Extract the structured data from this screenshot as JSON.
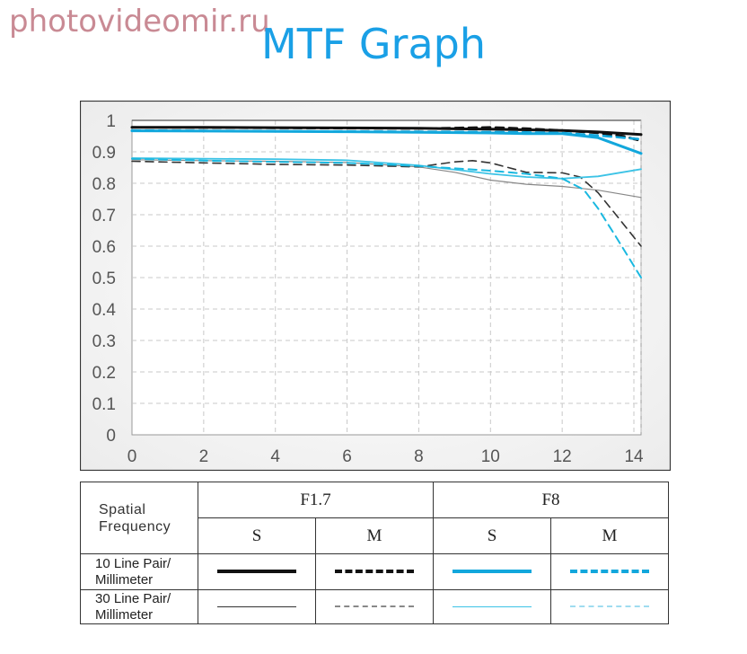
{
  "watermark": "photovideomir.ru",
  "title": "MTF Graph",
  "chart_data": {
    "type": "line",
    "xlim": [
      0,
      14.2
    ],
    "ylim": [
      0,
      1
    ],
    "x_ticks": [
      "0",
      "2",
      "4",
      "6",
      "8",
      "10",
      "12",
      "14"
    ],
    "y_ticks": [
      "0",
      "0.1",
      "0.2",
      "0.3",
      "0.4",
      "0.5",
      "0.6",
      "0.7",
      "0.8",
      "0.9",
      "1"
    ],
    "grid": true,
    "series": [
      {
        "name": "F1.7 S 10",
        "color": "#111111",
        "dashed": false,
        "width": 3,
        "points": [
          [
            0,
            0.978
          ],
          [
            2,
            0.978
          ],
          [
            4,
            0.977
          ],
          [
            6,
            0.976
          ],
          [
            8,
            0.975
          ],
          [
            10,
            0.972
          ],
          [
            12,
            0.968
          ],
          [
            13,
            0.963
          ],
          [
            14.2,
            0.955
          ]
        ]
      },
      {
        "name": "F1.7 M 10",
        "color": "#111111",
        "dashed": true,
        "width": 2.6,
        "points": [
          [
            0,
            0.978
          ],
          [
            2,
            0.977
          ],
          [
            4,
            0.976
          ],
          [
            6,
            0.975
          ],
          [
            8,
            0.974
          ],
          [
            10,
            0.978
          ],
          [
            11,
            0.974
          ],
          [
            12,
            0.968
          ],
          [
            13,
            0.96
          ],
          [
            13.7,
            0.95
          ],
          [
            14.2,
            0.935
          ]
        ]
      },
      {
        "name": "F8 S 10",
        "color": "#12a7dc",
        "dashed": false,
        "width": 3,
        "points": [
          [
            0,
            0.967
          ],
          [
            2,
            0.966
          ],
          [
            4,
            0.965
          ],
          [
            6,
            0.964
          ],
          [
            8,
            0.962
          ],
          [
            10,
            0.96
          ],
          [
            11,
            0.958
          ],
          [
            12,
            0.958
          ],
          [
            13,
            0.945
          ],
          [
            14.2,
            0.895
          ]
        ]
      },
      {
        "name": "F8 M 10",
        "color": "#12a7dc",
        "dashed": true,
        "width": 2.6,
        "points": [
          [
            0,
            0.968
          ],
          [
            2,
            0.967
          ],
          [
            4,
            0.966
          ],
          [
            6,
            0.965
          ],
          [
            8,
            0.964
          ],
          [
            10,
            0.963
          ],
          [
            11,
            0.962
          ],
          [
            12,
            0.96
          ],
          [
            13,
            0.952
          ],
          [
            14.2,
            0.94
          ]
        ]
      },
      {
        "name": "F1.7 S 30",
        "color": "#888888",
        "dashed": false,
        "width": 1.2,
        "points": [
          [
            0,
            0.875
          ],
          [
            2,
            0.872
          ],
          [
            4,
            0.87
          ],
          [
            6,
            0.866
          ],
          [
            8,
            0.852
          ],
          [
            9,
            0.835
          ],
          [
            10,
            0.81
          ],
          [
            11,
            0.797
          ],
          [
            12,
            0.79
          ],
          [
            13,
            0.778
          ],
          [
            14.2,
            0.755
          ]
        ]
      },
      {
        "name": "F1.7 M 30",
        "color": "#333333",
        "dashed": true,
        "width": 1.6,
        "points": [
          [
            0,
            0.87
          ],
          [
            2,
            0.865
          ],
          [
            4,
            0.86
          ],
          [
            6,
            0.858
          ],
          [
            8,
            0.852
          ],
          [
            9,
            0.868
          ],
          [
            9.5,
            0.872
          ],
          [
            10,
            0.865
          ],
          [
            11,
            0.835
          ],
          [
            12,
            0.833
          ],
          [
            12.5,
            0.82
          ],
          [
            13,
            0.77
          ],
          [
            13.5,
            0.7
          ],
          [
            14.2,
            0.6
          ]
        ]
      },
      {
        "name": "F8 S 30",
        "color": "#3cc3e6",
        "dashed": false,
        "width": 1.8,
        "points": [
          [
            0,
            0.88
          ],
          [
            2,
            0.878
          ],
          [
            4,
            0.877
          ],
          [
            6,
            0.873
          ],
          [
            8,
            0.857
          ],
          [
            10,
            0.83
          ],
          [
            11,
            0.82
          ],
          [
            12,
            0.815
          ],
          [
            13,
            0.822
          ],
          [
            14.2,
            0.845
          ]
        ]
      },
      {
        "name": "F8 M 30",
        "color": "#1ab8e0",
        "dashed": true,
        "width": 2,
        "points": [
          [
            0,
            0.878
          ],
          [
            2,
            0.872
          ],
          [
            4,
            0.868
          ],
          [
            6,
            0.865
          ],
          [
            8,
            0.855
          ],
          [
            10,
            0.84
          ],
          [
            11,
            0.83
          ],
          [
            12,
            0.815
          ],
          [
            12.6,
            0.78
          ],
          [
            13,
            0.72
          ],
          [
            13.5,
            0.63
          ],
          [
            14.2,
            0.5
          ]
        ]
      }
    ]
  },
  "legend": {
    "header_label": "Spatial\nFrequency",
    "f1": "F1.7",
    "f2": "F8",
    "s": "S",
    "m": "M",
    "row10": "10 Line Pair/\nMillimeter",
    "row30": "30 Line Pair/\nMillimeter",
    "colors": {
      "black": "#111111",
      "gray": "#777777",
      "blue": "#12a7dc",
      "lightblue": "#7fd4f0"
    }
  }
}
